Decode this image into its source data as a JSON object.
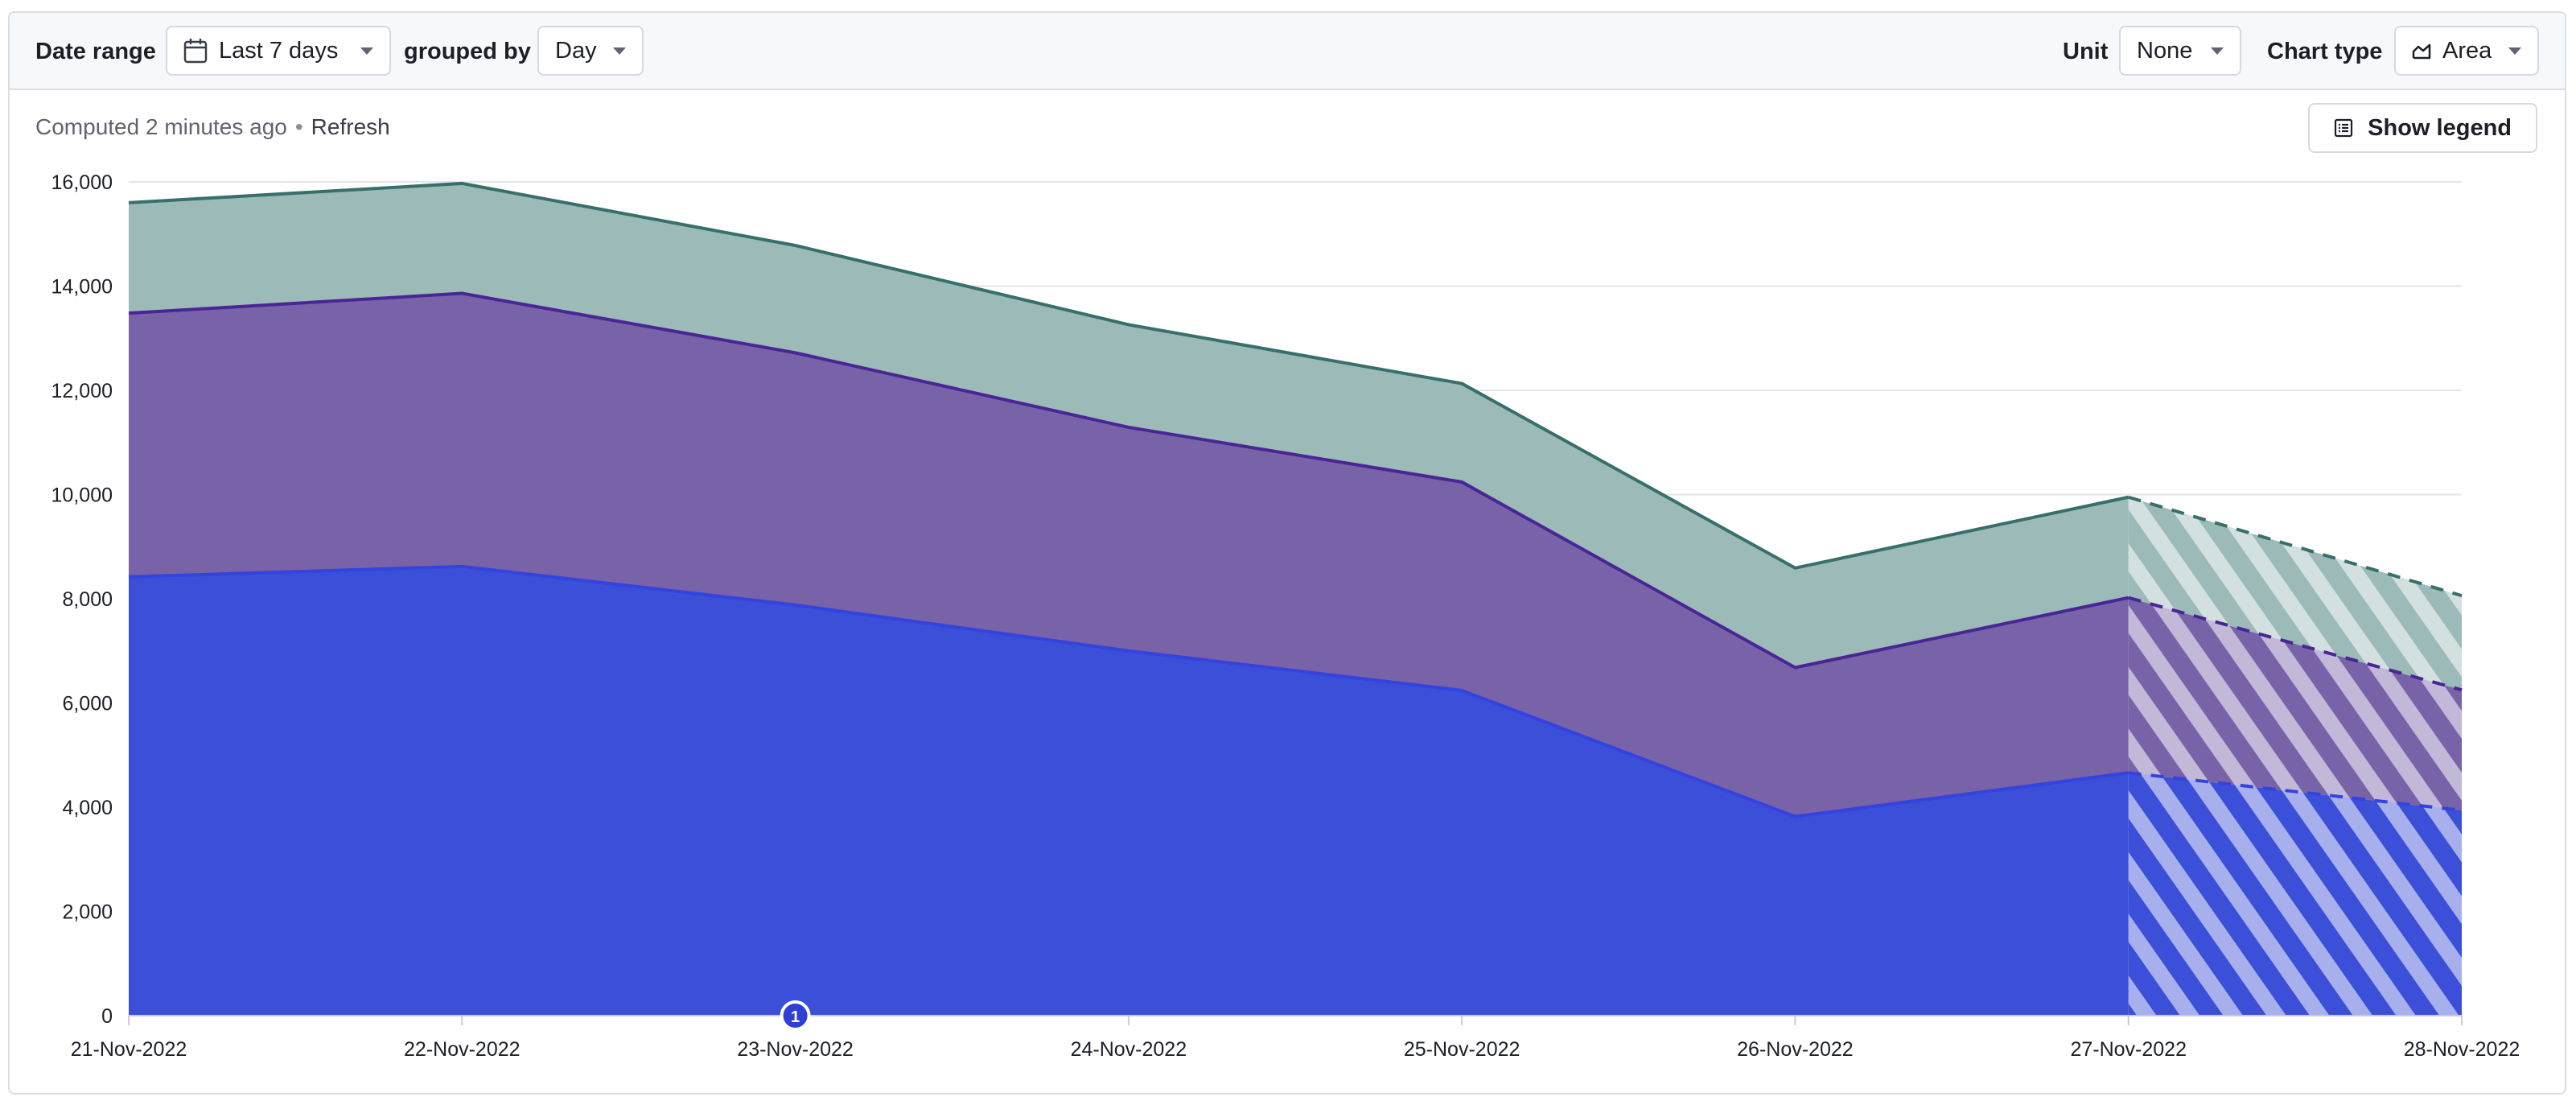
{
  "toolbar": {
    "date_range_label": "Date range",
    "date_range_value": "Last 7 days",
    "grouped_by_label": "grouped by",
    "grouped_by_value": "Day",
    "unit_label": "Unit",
    "unit_value": "None",
    "chart_type_label": "Chart type",
    "chart_type_value": "Area"
  },
  "status": {
    "computed_text": "Computed 2 minutes ago",
    "separator": "•",
    "refresh_label": "Refresh"
  },
  "legend_button_label": "Show legend",
  "annotation": {
    "label": "1",
    "date": "23-Nov-2022"
  },
  "icons": {
    "calendar": "calendar-icon",
    "area_chart": "area-chart-icon",
    "legend": "legend-list-icon",
    "caret": "chevron-down-icon"
  },
  "chart_data": {
    "type": "area",
    "stacked": true,
    "categories": [
      "21-Nov-2022",
      "22-Nov-2022",
      "23-Nov-2022",
      "24-Nov-2022",
      "25-Nov-2022",
      "26-Nov-2022",
      "27-Nov-2022",
      "28-Nov-2022"
    ],
    "ylim": [
      0,
      16000
    ],
    "yticks": [
      0,
      2000,
      4000,
      6000,
      8000,
      10000,
      12000,
      14000,
      16000
    ],
    "grid": true,
    "incomplete_from_index": 6,
    "series": [
      {
        "values": [
          8420,
          8620,
          7880,
          7000,
          6240,
          3820,
          4660,
          3940
        ],
        "color": "#3b4fd8",
        "stroke": "#3442e0"
      },
      {
        "values": [
          5060,
          5240,
          4840,
          4290,
          4000,
          2860,
          3360,
          2310
        ],
        "color": "#7862a8",
        "stroke": "#4a2596"
      },
      {
        "values": [
          2120,
          2110,
          2060,
          1970,
          1890,
          1910,
          1930,
          1810
        ],
        "color": "#9bbab8",
        "stroke": "#37706a"
      }
    ]
  }
}
